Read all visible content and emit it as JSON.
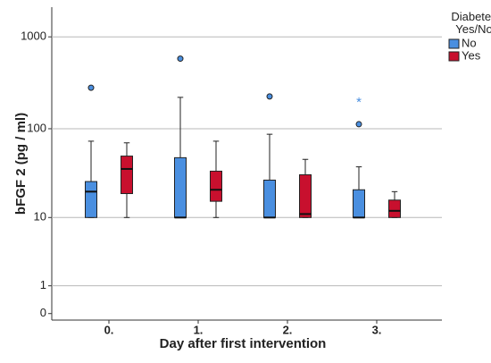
{
  "chart_data": {
    "type": "boxplot",
    "y_label": "bFGF 2 (pg / ml)",
    "x_label": "Day after first intervention",
    "categories": [
      "0.",
      "1.",
      "2.",
      "3."
    ],
    "yscale": "log",
    "ylim": [
      -0.15,
      2100
    ],
    "yticks": [
      0,
      1,
      10,
      100,
      1000
    ],
    "grid": true,
    "legend_title": "Diabetes Yes/No",
    "legend_position": "right",
    "series": [
      {
        "name": "No",
        "color": "#4a8fe0",
        "boxes": [
          {
            "whislo": 10,
            "q1": 10,
            "med": 20,
            "q3": 26,
            "whishi": 73
          },
          {
            "whislo": 10,
            "q1": 10,
            "med": 10,
            "q3": 48,
            "whishi": 220
          },
          {
            "whislo": 10,
            "q1": 10,
            "med": 10,
            "q3": 27,
            "whishi": 87
          },
          {
            "whislo": 10,
            "q1": 10,
            "med": 10,
            "q3": 21,
            "whishi": 38
          }
        ],
        "outliers": [
          [
            280
          ],
          [
            580
          ],
          [
            225
          ],
          [
            112
          ]
        ],
        "extremes": [
          [],
          [],
          [],
          [
            205
          ]
        ]
      },
      {
        "name": "Yes",
        "color": "#c8102e",
        "boxes": [
          {
            "whislo": 10,
            "q1": 19,
            "med": 36,
            "q3": 50,
            "whishi": 70
          },
          {
            "whislo": 10,
            "q1": 15.5,
            "med": 21,
            "q3": 34,
            "whishi": 73
          },
          {
            "whislo": 10,
            "q1": 10,
            "med": 11,
            "q3": 31,
            "whishi": 46
          },
          {
            "whislo": 10,
            "q1": 10,
            "med": 12,
            "q3": 16,
            "whishi": 20
          }
        ],
        "outliers": [
          [],
          [],
          [],
          []
        ],
        "extremes": [
          [],
          [],
          [],
          []
        ]
      }
    ]
  }
}
